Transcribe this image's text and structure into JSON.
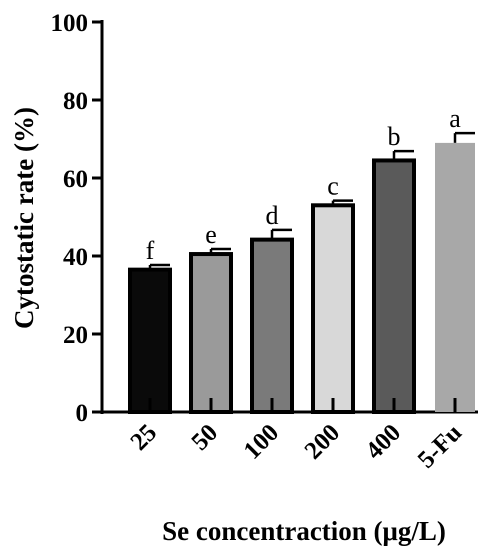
{
  "chart_data": {
    "type": "bar",
    "categories": [
      "25",
      "50",
      "100",
      "200",
      "400",
      "5-Fu"
    ],
    "values": [
      36.5,
      40.5,
      44.2,
      53.0,
      64.5,
      69.0
    ],
    "errors": [
      1.2,
      1.3,
      2.5,
      1.2,
      2.4,
      2.5
    ],
    "significance": [
      "f",
      "e",
      "d",
      "c",
      "b",
      "a"
    ],
    "colors": [
      "#0a0a0a",
      "#9a9a9a",
      "#7a7a7a",
      "#d8d8d8",
      "#5a5a5a",
      "#a8a8a8"
    ],
    "xlabel": "Se concentraction (μg/L)",
    "ylabel": "Cytostatic rate (%)",
    "ylim": [
      0,
      100
    ],
    "yticks": [
      0,
      20,
      40,
      60,
      80,
      100
    ],
    "grid": false
  }
}
